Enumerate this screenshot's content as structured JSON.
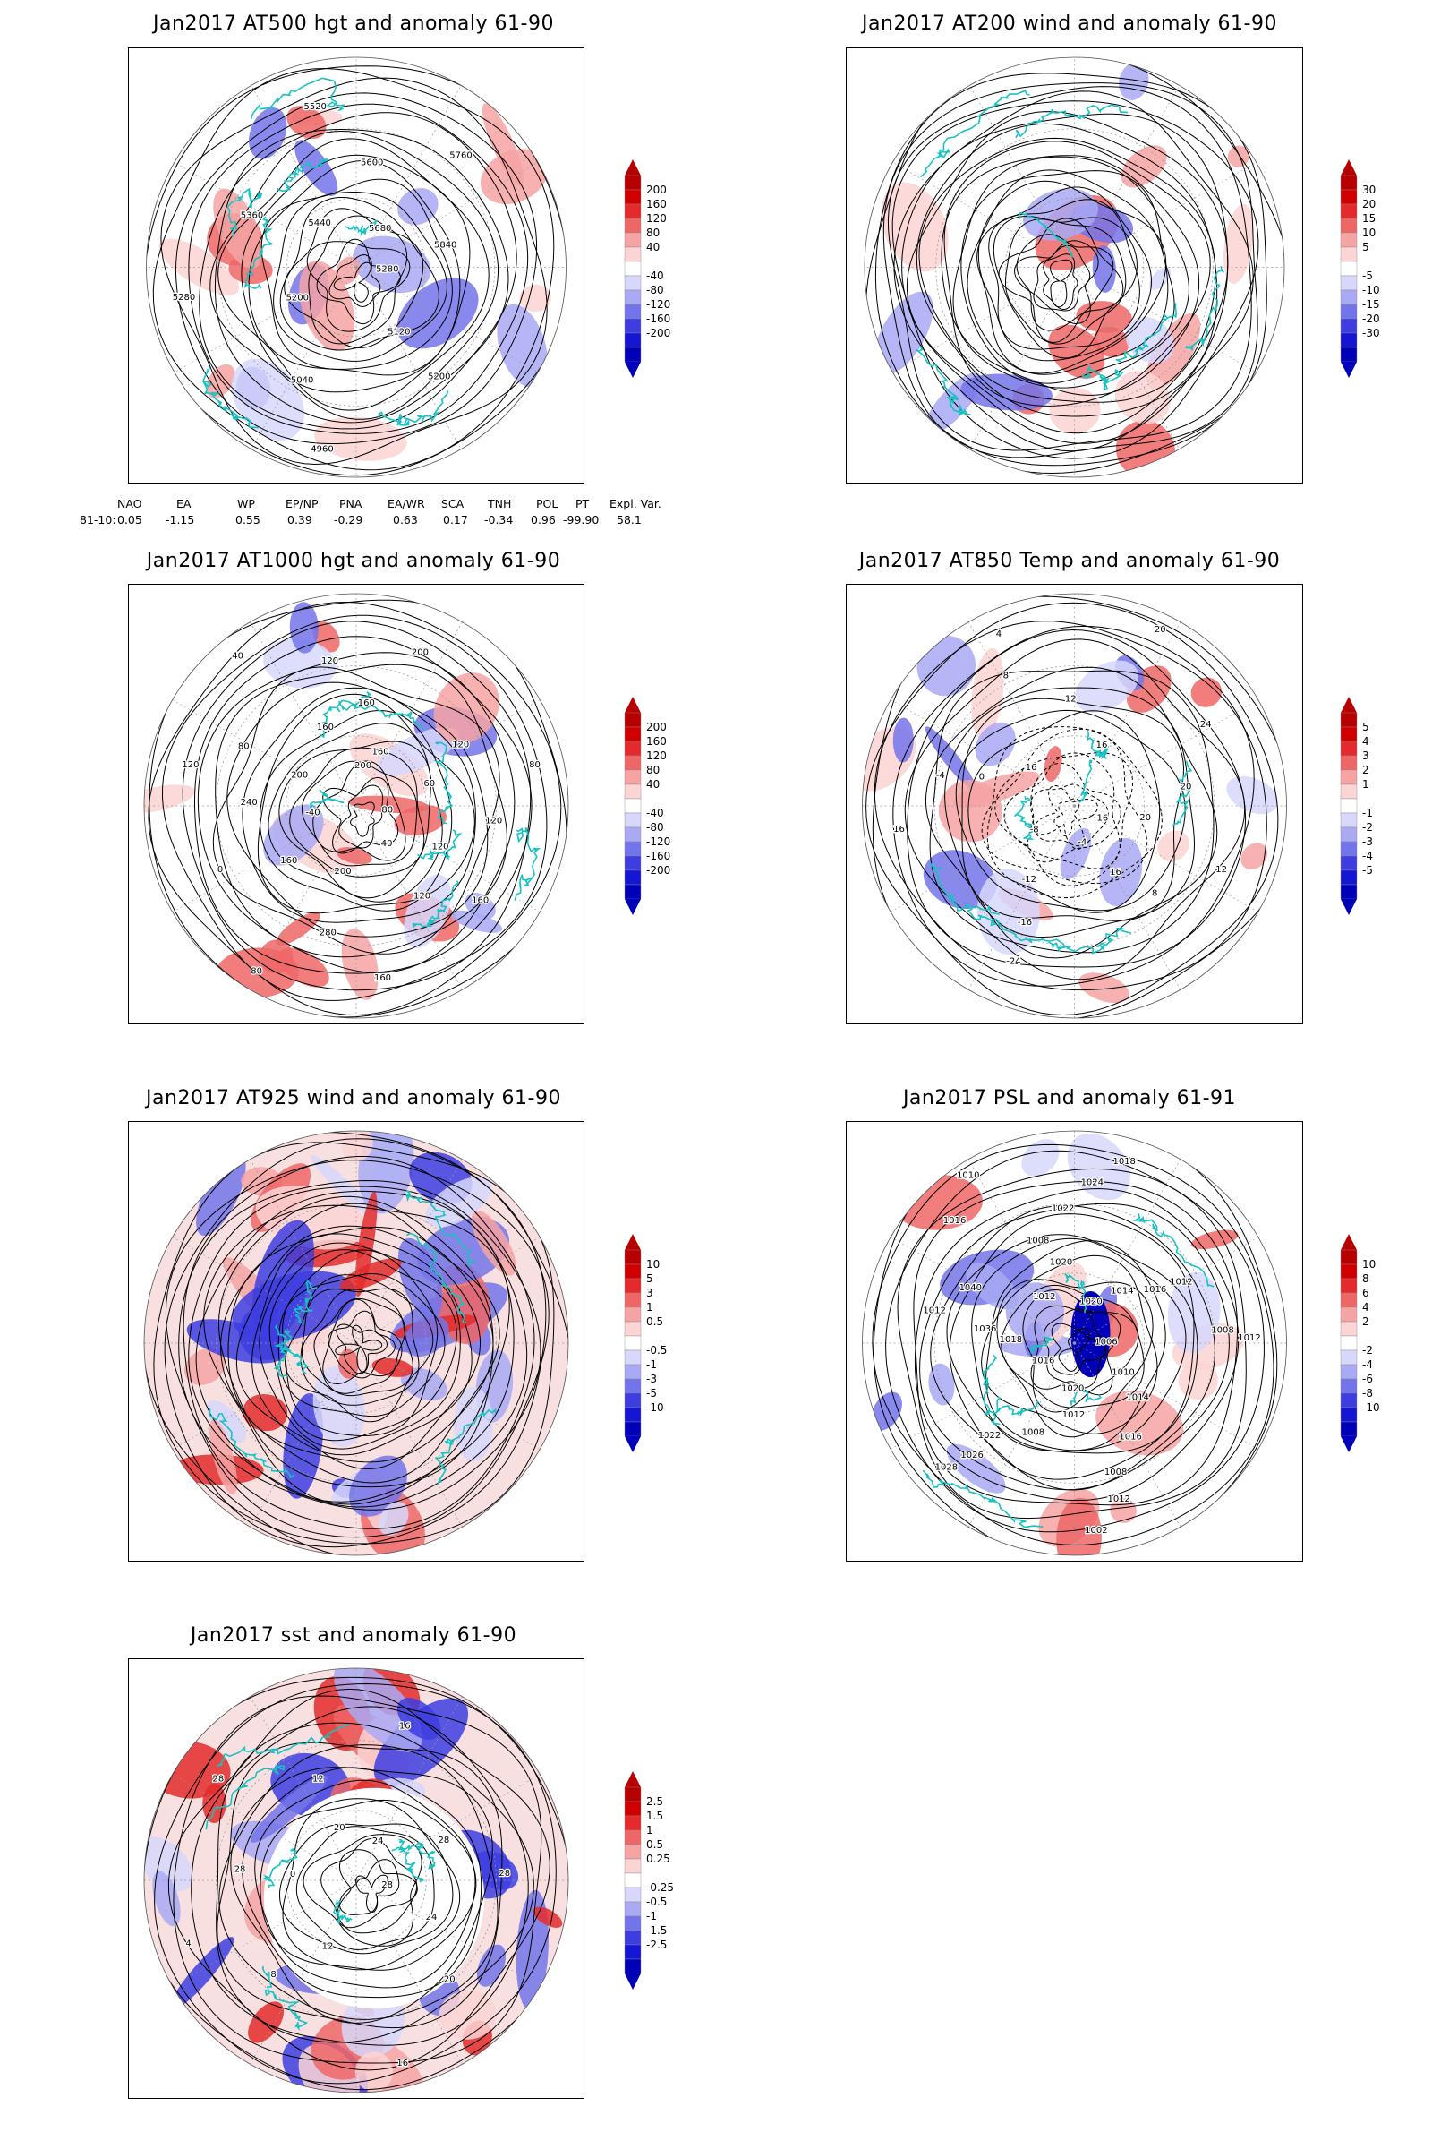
{
  "colors": {
    "coast": "#17c2c2",
    "contour": "#000000",
    "grid": "#9a9a9a",
    "red": [
      "#fbd4d4",
      "#f6a3a3",
      "#ee6666",
      "#e42a2a",
      "#d00000",
      "#b80000"
    ],
    "blue": [
      "#d7d7fb",
      "#a9a9f4",
      "#7474ea",
      "#3d3de0",
      "#1515d4",
      "#0000b8"
    ]
  },
  "panels": [
    {
      "id": "at500",
      "title": "Jan2017 AT500 hgt and anomaly 61-90",
      "colorbar": [
        "200",
        "160",
        "120",
        "80",
        "40",
        "-40",
        "-80",
        "-120",
        "-160",
        "-200"
      ],
      "contour_labels": [
        "5280",
        "5200",
        "5120",
        "4960",
        "5040",
        "5200",
        "5280",
        "5360",
        "5440",
        "5520",
        "5600",
        "5680",
        "5760",
        "5840"
      ]
    },
    {
      "id": "at200",
      "title": "Jan2017 AT200 wind and anomaly 61-90",
      "colorbar": [
        "30",
        "20",
        "15",
        "10",
        "5",
        "-5",
        "-10",
        "-15",
        "-20",
        "-30"
      ],
      "contour_labels": []
    },
    {
      "id": "at1000",
      "title": "Jan2017 AT1000 hgt and anomaly 61-90",
      "colorbar": [
        "200",
        "160",
        "120",
        "80",
        "40",
        "-40",
        "-80",
        "-120",
        "-160",
        "-200"
      ],
      "contour_labels": [
        "80",
        "120",
        "160",
        "40",
        "120",
        "160",
        "200",
        "280",
        "80",
        "160",
        "0",
        "-40",
        "240",
        "120",
        "200",
        "80",
        "40",
        "160",
        "120",
        "200",
        "160",
        "200",
        "160",
        "120",
        "80",
        "60",
        "120"
      ]
    },
    {
      "id": "at850",
      "title": "Jan2017 AT850 Temp and anomaly 61-90",
      "colorbar": [
        "5",
        "4",
        "3",
        "2",
        "1",
        "-1",
        "-2",
        "-3",
        "-4",
        "-5"
      ],
      "contour_labels": [
        "16",
        "12",
        "8",
        "16",
        "-4",
        "-24",
        "-16",
        "-12",
        "-8",
        "16",
        "-4",
        "0",
        "16",
        "4",
        "8",
        "12",
        "16",
        "20",
        "24",
        "20",
        "20"
      ]
    },
    {
      "id": "at925",
      "title": "Jan2017 AT925 wind and anomaly 61-90",
      "colorbar": [
        "10",
        "5",
        "3",
        "1",
        "0.5",
        "-0.5",
        "-1",
        "-3",
        "-5",
        "-10"
      ],
      "contour_labels": []
    },
    {
      "id": "psl",
      "title": "Jan2017 PSL and anomaly 61-91",
      "colorbar": [
        "10",
        "8",
        "6",
        "4",
        "2",
        "-2",
        "-4",
        "-6",
        "-8",
        "-10"
      ],
      "contour_labels": [
        "1006",
        "1010",
        "1014",
        "1016",
        "1008",
        "1012",
        "1002",
        "1020",
        "1012",
        "1008",
        "1022",
        "1026",
        "1028",
        "1016",
        "1018",
        "1036",
        "1040",
        "1012",
        "1016",
        "1010",
        "1012",
        "1020",
        "1008",
        "1022",
        "1024",
        "1018",
        "1020",
        "1014",
        "1016",
        "1012",
        "1008",
        "1012"
      ]
    },
    {
      "id": "sst",
      "title": "Jan2017 sst and anomaly 61-90",
      "colorbar": [
        "2.5",
        "1.5",
        "1",
        "0.5",
        "0.25",
        "-0.25",
        "-0.5",
        "-1",
        "-1.5",
        "-2.5"
      ],
      "contour_labels": [
        "28",
        "24",
        "20",
        "16",
        "12",
        "8",
        "4",
        "0",
        "28",
        "28",
        "20",
        "12",
        "16",
        "24",
        "28",
        "28"
      ]
    }
  ],
  "teleconnections": {
    "headers": [
      "NAO",
      "EA",
      "WP",
      "EP/NP",
      "PNA",
      "EA/WR",
      "SCA",
      "TNH",
      "POL",
      "PT",
      "Expl. Var."
    ],
    "row_label": "81-10:",
    "values": [
      "0.05",
      "-1.15",
      "0.55",
      "0.39",
      "-0.29",
      "0.63",
      "0.17",
      "-0.34",
      "0.96",
      "-99.90",
      "58.1"
    ]
  }
}
